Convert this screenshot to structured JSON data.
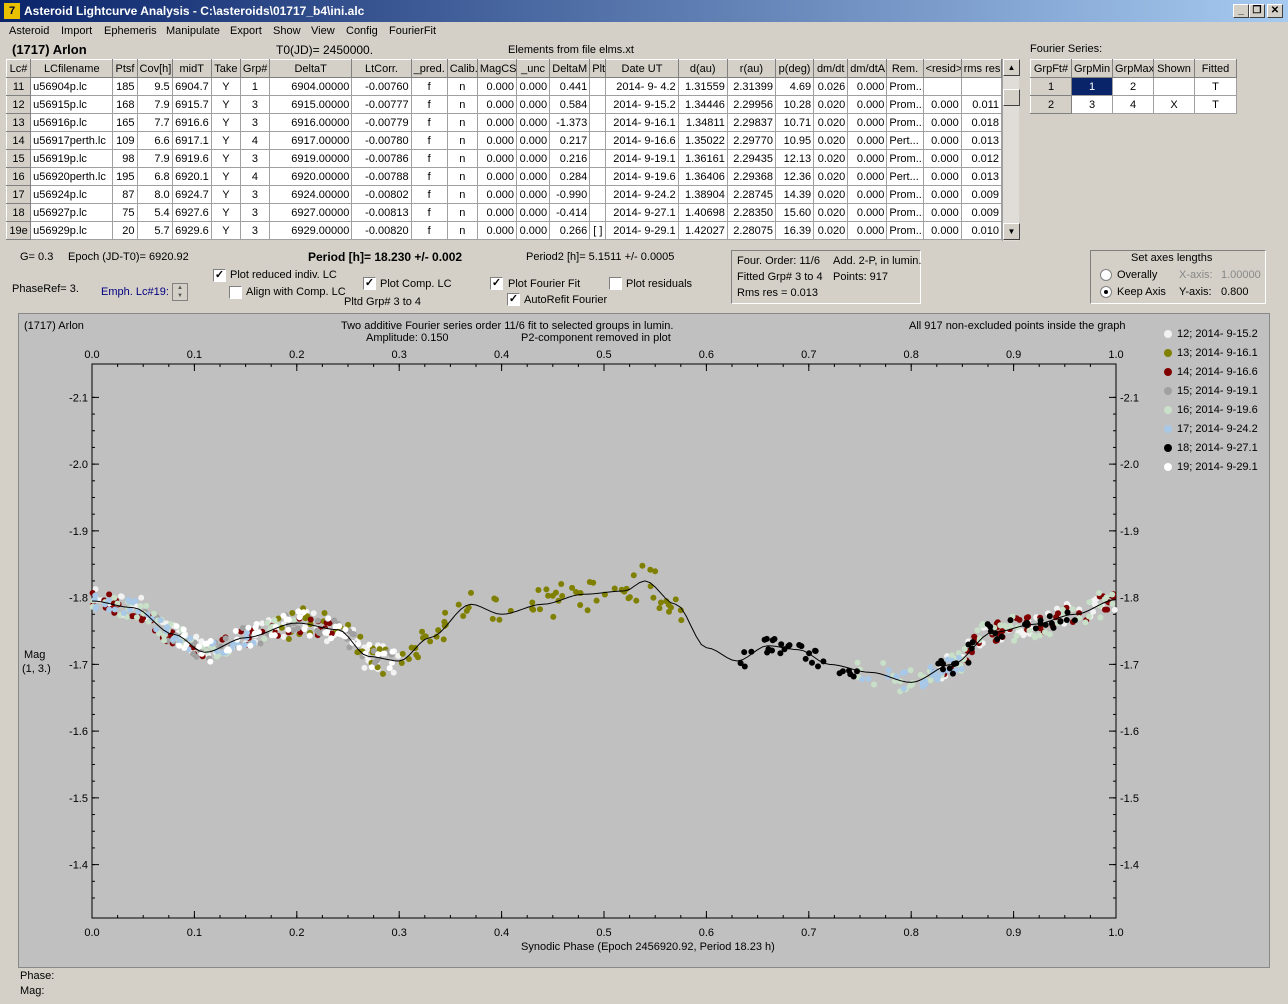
{
  "window": {
    "title": "Asteroid Lightcurve Analysis - C:\\asteroids\\01717_b4\\ini.alc",
    "icon_text": "7"
  },
  "menu": [
    "Asteroid",
    "Import",
    "Ephemeris",
    "Manipulate",
    "Export",
    "Show",
    "View",
    "Config",
    "FourierFit"
  ],
  "header": {
    "asteroid": "(1717) Arlon",
    "t0": "T0(JD)= 2450000.",
    "elements": "Elements from file elms.xt",
    "fourier_title": "Fourier Series:"
  },
  "lc_table": {
    "columns": [
      "Lc#",
      "LCfilename",
      "Ptsf",
      "Cov[h]",
      "midT",
      "Take",
      "Grp#",
      "DeltaT",
      "LtCorr.",
      "_pred.",
      "Calib.",
      "MagCS",
      "_unc",
      "DeltaM",
      "Plt",
      "Date UT",
      "d(au)",
      "r(au)",
      "p(deg)",
      "dm/dt",
      "dm/dtA",
      "Rem.",
      "<resid>",
      "rms res"
    ],
    "rows": [
      [
        "11",
        "u56904p.lc",
        "185",
        "9.5",
        "6904.7",
        "Y",
        "1",
        "6904.00000",
        "-0.00760",
        "f",
        "n",
        "0.000",
        "0.000",
        "0.441",
        "",
        "2014- 9- 4.2",
        "1.31559",
        "2.31399",
        "4.69",
        "0.026",
        "0.000",
        "Prom...",
        "",
        ""
      ],
      [
        "12",
        "u56915p.lc",
        "168",
        "7.9",
        "6915.7",
        "Y",
        "3",
        "6915.00000",
        "-0.00777",
        "f",
        "n",
        "0.000",
        "0.000",
        "0.584",
        "",
        "2014- 9-15.2",
        "1.34446",
        "2.29956",
        "10.28",
        "0.020",
        "0.000",
        "Prom...",
        "0.000",
        "0.011"
      ],
      [
        "13",
        "u56916p.lc",
        "165",
        "7.7",
        "6916.6",
        "Y",
        "3",
        "6916.00000",
        "-0.00779",
        "f",
        "n",
        "0.000",
        "0.000",
        "-1.373",
        "",
        "2014- 9-16.1",
        "1.34811",
        "2.29837",
        "10.71",
        "0.020",
        "0.000",
        "Prom...",
        "0.000",
        "0.018"
      ],
      [
        "14",
        "u56917perth.lc",
        "109",
        "6.6",
        "6917.1",
        "Y",
        "4",
        "6917.00000",
        "-0.00780",
        "f",
        "n",
        "0.000",
        "0.000",
        "0.217",
        "",
        "2014- 9-16.6",
        "1.35022",
        "2.29770",
        "10.95",
        "0.020",
        "0.000",
        "Pert...",
        "0.000",
        "0.013"
      ],
      [
        "15",
        "u56919p.lc",
        "98",
        "7.9",
        "6919.6",
        "Y",
        "3",
        "6919.00000",
        "-0.00786",
        "f",
        "n",
        "0.000",
        "0.000",
        "0.216",
        "",
        "2014- 9-19.1",
        "1.36161",
        "2.29435",
        "12.13",
        "0.020",
        "0.000",
        "Prom...",
        "0.000",
        "0.012"
      ],
      [
        "16",
        "u56920perth.lc",
        "195",
        "6.8",
        "6920.1",
        "Y",
        "4",
        "6920.00000",
        "-0.00788",
        "f",
        "n",
        "0.000",
        "0.000",
        "0.284",
        "",
        "2014- 9-19.6",
        "1.36406",
        "2.29368",
        "12.36",
        "0.020",
        "0.000",
        "Pert...",
        "0.000",
        "0.013"
      ],
      [
        "17",
        "u56924p.lc",
        "87",
        "8.0",
        "6924.7",
        "Y",
        "3",
        "6924.00000",
        "-0.00802",
        "f",
        "n",
        "0.000",
        "0.000",
        "-0.990",
        "",
        "2014- 9-24.2",
        "1.38904",
        "2.28745",
        "14.39",
        "0.020",
        "0.000",
        "Prom...",
        "0.000",
        "0.009"
      ],
      [
        "18",
        "u56927p.lc",
        "75",
        "5.4",
        "6927.6",
        "Y",
        "3",
        "6927.00000",
        "-0.00813",
        "f",
        "n",
        "0.000",
        "0.000",
        "-0.414",
        "",
        "2014- 9-27.1",
        "1.40698",
        "2.28350",
        "15.60",
        "0.020",
        "0.000",
        "Prom...",
        "0.000",
        "0.009"
      ],
      [
        "19e",
        "u56929p.lc",
        "20",
        "5.7",
        "6929.6",
        "Y",
        "3",
        "6929.00000",
        "-0.00820",
        "f",
        "n",
        "0.000",
        "0.000",
        "0.266",
        "[ ]",
        "2014- 9-29.1",
        "1.42027",
        "2.28075",
        "16.39",
        "0.020",
        "0.000",
        "Prom...",
        "0.000",
        "0.010"
      ]
    ]
  },
  "fourier_table": {
    "columns": [
      "GrpFt#",
      "GrpMin",
      "GrpMax",
      "Shown",
      "Fitted"
    ],
    "rows": [
      [
        "1",
        "1",
        "2",
        "",
        "T"
      ],
      [
        "2",
        "3",
        "4",
        "X",
        "T"
      ]
    ]
  },
  "controls": {
    "g": "G= 0.3",
    "epoch": "Epoch (JD-T0)= 6920.92",
    "period": "Period [h]= 18.230 +/- 0.002",
    "period2": "Period2 [h]= 5.1511 +/- 0.0005",
    "phaseref": "PhaseRef= 3.",
    "emph": "Emph. Lc#19:",
    "cb_plot_reduced": "Plot reduced indiv. LC",
    "cb_align": "Align with Comp. LC",
    "cb_plot_comp": "Plot Comp. LC",
    "pltd_grp": "Pltd Grp#  3  to   4",
    "cb_plot_fourier": "Plot Fourier Fit",
    "cb_autorefit": "AutoRefit Fourier",
    "cb_plot_resid": "Plot residuals",
    "four_order": "Four. Order: 11/6",
    "add": "Add. 2-P, in lumin.",
    "fitted_grp": "Fitted Grp# 3 to 4",
    "points": "Points: 917",
    "rms": "Rms res     = 0.013",
    "axes_title": "Set axes lengths",
    "overally": "Overally",
    "keep_axis": "Keep Axis",
    "xaxis_label": "X-axis:",
    "xaxis_val": "1.00000",
    "yaxis_label": "Y-axis:",
    "yaxis_val": "0.800"
  },
  "plot": {
    "name": "(1717) Arlon",
    "header_center1": "Two additive Fourier series order 11/6 fit to selected groups in lumin.",
    "header_center2a": "Amplitude: 0.150",
    "header_center2b": "P2-component removed in plot",
    "header_right": "All 917 non-excluded points inside the graph",
    "ylabel1": "Mag",
    "ylabel2": "(1, 3.)",
    "xlabel": "Synodic Phase (Epoch 2456920.92, Period 18.23 h)"
  },
  "chart_data": {
    "type": "scatter",
    "xlabel": "Synodic Phase (Epoch 2456920.92, Period 18.23 h)",
    "ylabel": "Mag",
    "xlim": [
      0.0,
      1.0
    ],
    "ylim": [
      -2.15,
      -1.32
    ],
    "y_inverted": true,
    "x_ticks": [
      "0.0",
      "0.1",
      "0.2",
      "0.3",
      "0.4",
      "0.5",
      "0.6",
      "0.7",
      "0.8",
      "0.9",
      "1.0"
    ],
    "y_ticks": [
      "-2.1",
      "-2.0",
      "-1.9",
      "-1.8",
      "-1.7",
      "-1.6",
      "-1.5",
      "-1.4"
    ],
    "legend": [
      {
        "label": "12; 2014- 9-15.2",
        "color": "#f2f2f2"
      },
      {
        "label": "13; 2014- 9-16.1",
        "color": "#808000"
      },
      {
        "label": "14; 2014- 9-16.6",
        "color": "#800000"
      },
      {
        "label": "15; 2014- 9-19.1",
        "color": "#a0a0a0"
      },
      {
        "label": "16; 2014- 9-19.6",
        "color": "#c8e0c8"
      },
      {
        "label": "17; 2014- 9-24.2",
        "color": "#a8c8e8"
      },
      {
        "label": "18; 2014- 9-27.1",
        "color": "#000000"
      },
      {
        "label": "19; 2014- 9-29.1",
        "color": "#ffffff"
      }
    ],
    "fit_curve": {
      "x": [
        0.0,
        0.04,
        0.08,
        0.11,
        0.15,
        0.2,
        0.24,
        0.27,
        0.3,
        0.33,
        0.37,
        0.4,
        0.44,
        0.48,
        0.52,
        0.54,
        0.57,
        0.6,
        0.63,
        0.66,
        0.69,
        0.72,
        0.76,
        0.8,
        0.84,
        0.88,
        0.92,
        0.96,
        1.0
      ],
      "y": [
        -1.795,
        -1.785,
        -1.745,
        -1.718,
        -1.74,
        -1.762,
        -1.752,
        -1.712,
        -1.705,
        -1.74,
        -1.79,
        -1.775,
        -1.79,
        -1.805,
        -1.81,
        -1.825,
        -1.79,
        -1.725,
        -1.705,
        -1.728,
        -1.722,
        -1.7,
        -1.688,
        -1.673,
        -1.7,
        -1.748,
        -1.76,
        -1.775,
        -1.797
      ]
    },
    "series": [
      {
        "name": "12; 2014- 9-15.2",
        "ranges": [
          [
            0.0,
            0.3,
            0.02
          ],
          [
            0.82,
            1.0,
            0.018
          ]
        ]
      },
      {
        "name": "13; 2014- 9-16.1",
        "ranges": [
          [
            0.18,
            0.58,
            0.025
          ]
        ]
      },
      {
        "name": "14; 2014- 9-16.6",
        "ranges": [
          [
            0.0,
            0.24,
            0.015
          ],
          [
            0.82,
            1.0,
            0.015
          ]
        ]
      },
      {
        "name": "15; 2014- 9-19.1",
        "ranges": [
          [
            0.05,
            0.3,
            0.015
          ]
        ]
      },
      {
        "name": "16; 2014- 9-19.6",
        "ranges": [
          [
            0.0,
            0.2,
            0.015
          ],
          [
            0.74,
            1.0,
            0.02
          ]
        ]
      },
      {
        "name": "17; 2014- 9-24.2",
        "ranges": [
          [
            0.0,
            0.16,
            0.012
          ],
          [
            0.75,
            0.86,
            0.015
          ]
        ]
      },
      {
        "name": "18; 2014- 9-27.1",
        "ranges": [
          [
            0.63,
            0.75,
            0.012
          ],
          [
            0.82,
            0.96,
            0.015
          ]
        ]
      },
      {
        "name": "19; 2014- 9-29.1",
        "ranges": [
          [
            0.08,
            0.3,
            0.018
          ]
        ]
      }
    ]
  }
}
